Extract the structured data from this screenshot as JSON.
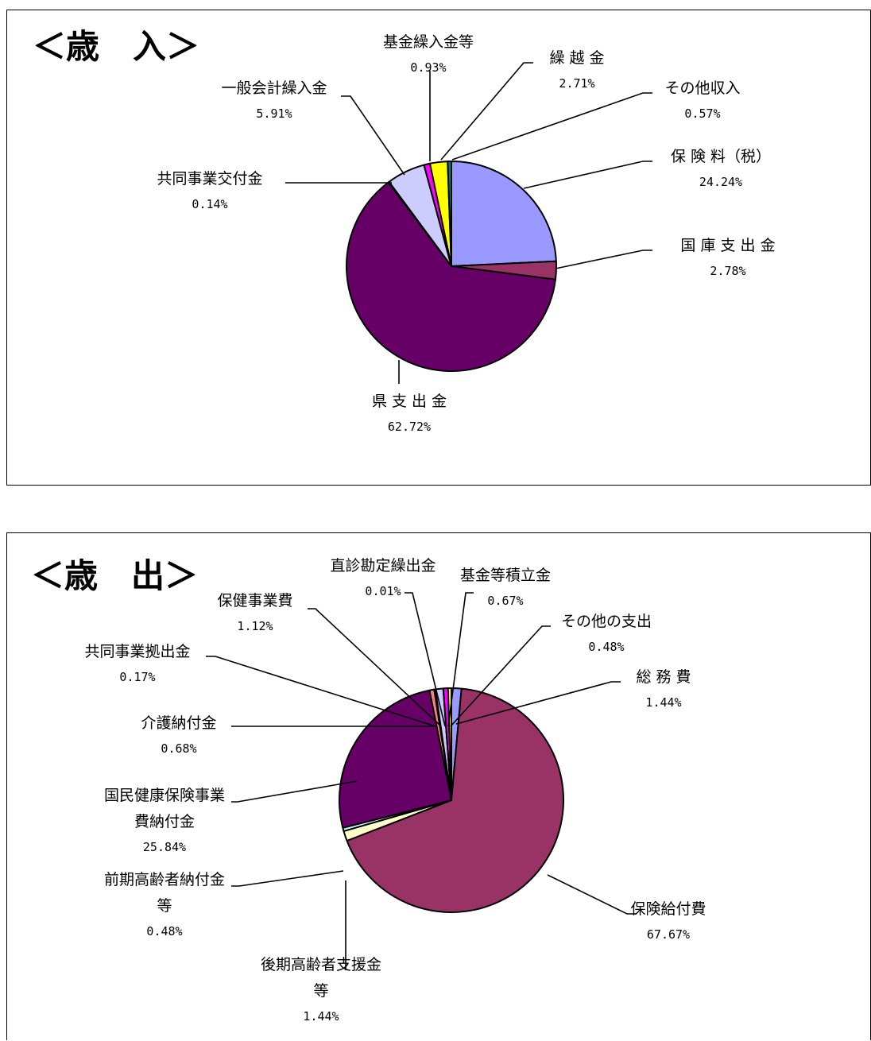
{
  "chart_data": [
    {
      "type": "pie",
      "title": "＜歳　入＞",
      "slices": [
        {
          "label": [
            "保 険 料（税）"
          ],
          "value": 24.24,
          "value_label": "24.24%",
          "color": "#9999ff"
        },
        {
          "label": [
            "国 庫 支 出 金"
          ],
          "value": 2.78,
          "value_label": "2.78%",
          "color": "#993366"
        },
        {
          "label": [
            "県 支 出 金"
          ],
          "value": 62.72,
          "value_label": "62.72%",
          "color": "#660066"
        },
        {
          "label": [
            "共同事業交付金"
          ],
          "value": 0.14,
          "value_label": "0.14%",
          "color": "#993366"
        },
        {
          "label": [
            "一般会計繰入金"
          ],
          "value": 5.91,
          "value_label": "5.91%",
          "color": "#ccccff"
        },
        {
          "label": [
            "基金繰入金等"
          ],
          "value": 0.93,
          "value_label": "0.93%",
          "color": "#ff00ff"
        },
        {
          "label": [
            "繰 越 金"
          ],
          "value": 2.71,
          "value_label": "2.71%",
          "color": "#ffff00"
        },
        {
          "label": [
            "その他収入"
          ],
          "value": 0.57,
          "value_label": "0.57%",
          "color": "#008080"
        }
      ]
    },
    {
      "type": "pie",
      "title": "＜歳　出＞",
      "slices": [
        {
          "label": [
            "総 務 費"
          ],
          "value": 1.44,
          "value_label": "1.44%",
          "color": "#9999ff"
        },
        {
          "label": [
            "保険給付費"
          ],
          "value": 67.67,
          "value_label": "67.67%",
          "color": "#993366"
        },
        {
          "label": [
            "後期高齢者支援金",
            "等"
          ],
          "value": 1.44,
          "value_label": "1.44%",
          "color": "#ffffcc"
        },
        {
          "label": [
            "前期高齢者納付金",
            "等"
          ],
          "value": 0.48,
          "value_label": "0.48%",
          "color": "#ccffff"
        },
        {
          "label": [
            "国民健康保険事業",
            "費納付金"
          ],
          "value": 25.84,
          "value_label": "25.84%",
          "color": "#660066"
        },
        {
          "label": [
            "介護納付金"
          ],
          "value": 0.68,
          "value_label": "0.68%",
          "color": "#ff8080"
        },
        {
          "label": [
            "共同事業拠出金"
          ],
          "value": 0.17,
          "value_label": "0.17%",
          "color": "#0066cc"
        },
        {
          "label": [
            "保健事業費"
          ],
          "value": 1.12,
          "value_label": "1.12%",
          "color": "#ccccff"
        },
        {
          "label": [
            "直診勘定繰出金"
          ],
          "value": 0.01,
          "value_label": "0.01%",
          "color": "#000080"
        },
        {
          "label": [
            "基金等積立金"
          ],
          "value": 0.67,
          "value_label": "0.67%",
          "color": "#ff00ff"
        },
        {
          "label": [
            "その他の支出"
          ],
          "value": 0.48,
          "value_label": "0.48%",
          "color": "#ffff00"
        }
      ]
    }
  ]
}
